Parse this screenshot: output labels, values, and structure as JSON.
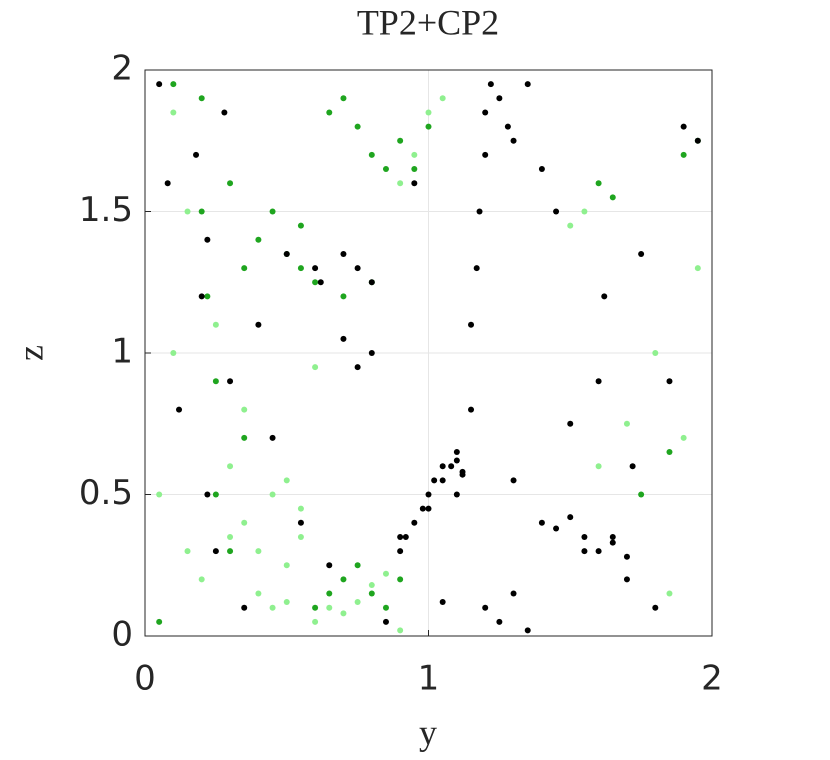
{
  "chart_data": {
    "type": "scatter",
    "title": "TP2+CP2",
    "xlabel": "y",
    "ylabel": "z",
    "xlim": [
      0,
      2
    ],
    "ylim": [
      0,
      2
    ],
    "xticks": [
      0,
      1,
      2
    ],
    "yticks": [
      0,
      0.5,
      1,
      1.5,
      2
    ],
    "grid": true,
    "series": [
      {
        "color": "#000000",
        "x": [
          0.05,
          0.08,
          0.12,
          0.18,
          0.2,
          0.22,
          0.25,
          0.28,
          0.3,
          0.22,
          0.35,
          0.4,
          0.45,
          0.5,
          0.55,
          0.6,
          0.62,
          0.65,
          0.7,
          0.75,
          0.8,
          0.85,
          0.9,
          0.95,
          1.0,
          1.05,
          1.08,
          1.1,
          1.12,
          1.15,
          1.15,
          1.17,
          1.18,
          1.2,
          1.2,
          1.22,
          1.25,
          1.28,
          1.3,
          1.35,
          1.4,
          1.45,
          1.5,
          1.55,
          1.6,
          1.62,
          1.65,
          1.7,
          1.72,
          1.75,
          1.8,
          1.85,
          1.9,
          1.95,
          1.2,
          1.25,
          1.3,
          1.35,
          0.95,
          1.0,
          1.05,
          1.1,
          1.12,
          0.9,
          0.92,
          0.98,
          1.02,
          1.1,
          1.05,
          1.3,
          1.4,
          1.45,
          1.5,
          1.55,
          1.6,
          1.65,
          1.7,
          0.7,
          0.75,
          0.8
        ],
        "values": [
          1.95,
          1.6,
          0.8,
          1.7,
          1.2,
          0.5,
          0.3,
          1.85,
          0.9,
          1.4,
          0.1,
          1.1,
          0.7,
          1.35,
          0.4,
          1.3,
          1.25,
          0.25,
          1.05,
          0.95,
          1.0,
          0.05,
          0.35,
          1.6,
          0.45,
          0.55,
          0.6,
          0.62,
          0.58,
          0.8,
          1.1,
          1.3,
          1.5,
          1.7,
          1.85,
          1.95,
          1.9,
          1.8,
          1.75,
          1.95,
          1.65,
          1.5,
          0.75,
          0.3,
          0.9,
          1.2,
          0.35,
          0.2,
          0.6,
          1.35,
          0.1,
          0.9,
          1.8,
          1.75,
          0.1,
          0.05,
          0.15,
          0.02,
          0.4,
          0.5,
          0.6,
          0.65,
          0.57,
          0.3,
          0.35,
          0.45,
          0.55,
          0.5,
          0.12,
          0.55,
          0.4,
          0.38,
          0.42,
          0.35,
          0.3,
          0.33,
          0.28,
          1.35,
          1.3,
          1.25
        ]
      },
      {
        "color": "#1fa51f",
        "x": [
          0.2,
          0.22,
          0.25,
          0.3,
          0.35,
          0.4,
          0.5,
          0.55,
          0.6,
          0.65,
          0.7,
          0.75,
          0.8,
          0.85,
          0.9,
          0.7,
          0.75,
          0.8,
          0.85,
          0.9,
          0.6,
          0.65,
          0.7,
          0.8,
          0.95,
          1.0,
          0.25,
          0.3,
          0.2,
          0.35,
          1.6,
          1.65,
          1.9,
          1.95,
          0.05,
          0.1,
          1.75,
          1.85,
          0.45,
          0.55
        ],
        "values": [
          1.5,
          1.2,
          0.9,
          1.6,
          1.3,
          1.4,
          1.35,
          1.3,
          1.25,
          1.85,
          1.9,
          1.8,
          1.7,
          1.65,
          1.75,
          0.2,
          0.25,
          0.15,
          0.1,
          0.2,
          0.1,
          0.15,
          1.2,
          1.25,
          1.65,
          1.8,
          0.5,
          0.3,
          1.9,
          0.7,
          1.6,
          1.55,
          1.7,
          1.75,
          0.05,
          1.95,
          0.5,
          0.65,
          1.5,
          1.45
        ]
      },
      {
        "color": "#8ff08f",
        "x": [
          0.05,
          0.1,
          0.15,
          0.2,
          0.3,
          0.35,
          0.4,
          0.45,
          0.5,
          0.55,
          0.4,
          0.45,
          0.5,
          0.35,
          0.3,
          0.25,
          0.6,
          0.65,
          0.7,
          0.75,
          0.8,
          0.85,
          0.9,
          0.95,
          1.0,
          1.05,
          1.6,
          1.7,
          1.8,
          1.9,
          1.95,
          0.5,
          0.55,
          0.6,
          0.15,
          0.1,
          1.5,
          1.55,
          1.85,
          0.9
        ],
        "values": [
          0.5,
          1.0,
          1.5,
          0.2,
          0.6,
          0.4,
          0.3,
          0.5,
          0.25,
          0.45,
          0.15,
          0.1,
          0.12,
          0.8,
          0.35,
          1.1,
          0.05,
          0.1,
          0.08,
          0.12,
          0.18,
          0.22,
          1.6,
          1.7,
          1.85,
          1.9,
          0.6,
          0.75,
          1.0,
          0.7,
          1.3,
          0.55,
          0.35,
          0.95,
          0.3,
          1.85,
          1.45,
          1.5,
          0.15,
          0.02
        ]
      }
    ]
  }
}
